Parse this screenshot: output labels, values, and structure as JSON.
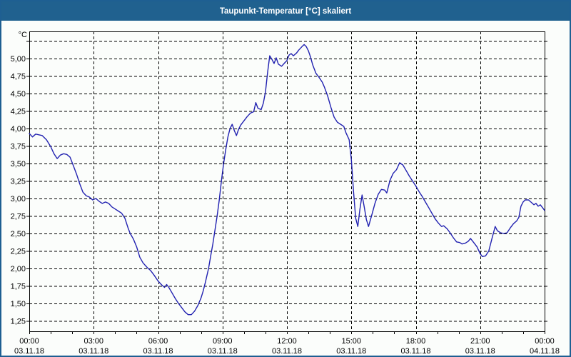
{
  "window": {
    "title": "Taupunkt-Temperatur [°C] skaliert"
  },
  "colors": {
    "titlebar_bg": "#20618f",
    "frame": "#1e5f92",
    "background": "#fbfdfb",
    "grid": "#000000",
    "axis": "#000000",
    "line": "#2121b0",
    "title_text": "#ffffff"
  },
  "chart_data": {
    "type": "line",
    "title": "Taupunkt-Temperatur [°C] skaliert",
    "ylabel": "°C",
    "xlabel": "",
    "x_unit": "hours since 00:00 03.11.18",
    "xlim": [
      0,
      24
    ],
    "ylim": [
      1.1,
      5.39
    ],
    "grid": "dashed",
    "legend": "none",
    "y_ticks": [
      {
        "value": 5.25,
        "label": ""
      },
      {
        "value": 5.0,
        "label": "5,00"
      },
      {
        "value": 4.75,
        "label": "4,75"
      },
      {
        "value": 4.5,
        "label": "4,50"
      },
      {
        "value": 4.25,
        "label": "4,25"
      },
      {
        "value": 4.0,
        "label": "4,00"
      },
      {
        "value": 3.75,
        "label": "3,75"
      },
      {
        "value": 3.5,
        "label": "3,50"
      },
      {
        "value": 3.25,
        "label": "3,25"
      },
      {
        "value": 3.0,
        "label": "3,00"
      },
      {
        "value": 2.75,
        "label": "2,75"
      },
      {
        "value": 2.5,
        "label": "2,50"
      },
      {
        "value": 2.25,
        "label": "2,25"
      },
      {
        "value": 2.0,
        "label": "2,00"
      },
      {
        "value": 1.75,
        "label": "1,75"
      },
      {
        "value": 1.5,
        "label": "1,50"
      },
      {
        "value": 1.25,
        "label": "1,25"
      }
    ],
    "x_ticks": [
      {
        "hour": 0,
        "time": "00:00",
        "date": "03.11.18"
      },
      {
        "hour": 3,
        "time": "03:00",
        "date": "03.11.18"
      },
      {
        "hour": 6,
        "time": "06:00",
        "date": "03.11.18"
      },
      {
        "hour": 9,
        "time": "09:00",
        "date": "03.11.18"
      },
      {
        "hour": 12,
        "time": "12:00",
        "date": "03.11.18"
      },
      {
        "hour": 15,
        "time": "15:00",
        "date": "03.11.18"
      },
      {
        "hour": 18,
        "time": "18:00",
        "date": "03.11.18"
      },
      {
        "hour": 21,
        "time": "21:00",
        "date": "03.11.18"
      },
      {
        "hour": 24,
        "time": "00:00",
        "date": "04.11.18"
      }
    ],
    "minor_x_tick_step_hours": 1,
    "series": [
      {
        "name": "Taupunkt-Temperatur",
        "color": "#2121b0",
        "points": [
          [
            0.0,
            3.93
          ],
          [
            0.15,
            3.88
          ],
          [
            0.3,
            3.92
          ],
          [
            0.45,
            3.91
          ],
          [
            0.6,
            3.9
          ],
          [
            0.8,
            3.84
          ],
          [
            1.0,
            3.74
          ],
          [
            1.15,
            3.64
          ],
          [
            1.3,
            3.57
          ],
          [
            1.45,
            3.62
          ],
          [
            1.6,
            3.64
          ],
          [
            1.75,
            3.63
          ],
          [
            1.9,
            3.59
          ],
          [
            2.05,
            3.47
          ],
          [
            2.2,
            3.35
          ],
          [
            2.35,
            3.21
          ],
          [
            2.5,
            3.09
          ],
          [
            2.65,
            3.04
          ],
          [
            2.8,
            3.02
          ],
          [
            2.95,
            2.98
          ],
          [
            3.1,
            3.0
          ],
          [
            3.25,
            2.96
          ],
          [
            3.4,
            2.93
          ],
          [
            3.55,
            2.95
          ],
          [
            3.7,
            2.93
          ],
          [
            3.85,
            2.88
          ],
          [
            4.0,
            2.85
          ],
          [
            4.15,
            2.82
          ],
          [
            4.3,
            2.79
          ],
          [
            4.45,
            2.72
          ],
          [
            4.6,
            2.58
          ],
          [
            4.7,
            2.5
          ],
          [
            4.85,
            2.42
          ],
          [
            5.0,
            2.31
          ],
          [
            5.15,
            2.16
          ],
          [
            5.3,
            2.08
          ],
          [
            5.5,
            2.01
          ],
          [
            5.65,
            1.97
          ],
          [
            5.8,
            1.91
          ],
          [
            6.0,
            1.82
          ],
          [
            6.15,
            1.77
          ],
          [
            6.3,
            1.73
          ],
          [
            6.4,
            1.77
          ],
          [
            6.5,
            1.73
          ],
          [
            6.65,
            1.65
          ],
          [
            6.8,
            1.57
          ],
          [
            6.95,
            1.5
          ],
          [
            7.1,
            1.44
          ],
          [
            7.25,
            1.38
          ],
          [
            7.4,
            1.34
          ],
          [
            7.55,
            1.34
          ],
          [
            7.7,
            1.39
          ],
          [
            7.85,
            1.47
          ],
          [
            8.0,
            1.58
          ],
          [
            8.1,
            1.68
          ],
          [
            8.2,
            1.8
          ],
          [
            8.35,
            2.0
          ],
          [
            8.45,
            2.18
          ],
          [
            8.55,
            2.35
          ],
          [
            8.65,
            2.55
          ],
          [
            8.75,
            2.75
          ],
          [
            8.85,
            2.98
          ],
          [
            8.95,
            3.25
          ],
          [
            9.05,
            3.5
          ],
          [
            9.15,
            3.7
          ],
          [
            9.25,
            3.88
          ],
          [
            9.35,
            4.0
          ],
          [
            9.45,
            4.06
          ],
          [
            9.55,
            3.97
          ],
          [
            9.65,
            3.9
          ],
          [
            9.75,
            3.99
          ],
          [
            9.85,
            4.05
          ],
          [
            10.0,
            4.11
          ],
          [
            10.15,
            4.17
          ],
          [
            10.3,
            4.22
          ],
          [
            10.45,
            4.24
          ],
          [
            10.55,
            4.37
          ],
          [
            10.65,
            4.29
          ],
          [
            10.8,
            4.27
          ],
          [
            10.9,
            4.36
          ],
          [
            11.0,
            4.52
          ],
          [
            11.1,
            4.8
          ],
          [
            11.2,
            5.04
          ],
          [
            11.3,
            4.99
          ],
          [
            11.4,
            4.93
          ],
          [
            11.5,
            5.01
          ],
          [
            11.6,
            4.92
          ],
          [
            11.75,
            4.89
          ],
          [
            11.9,
            4.94
          ],
          [
            12.0,
            4.97
          ],
          [
            12.1,
            5.05
          ],
          [
            12.2,
            5.07
          ],
          [
            12.3,
            5.04
          ],
          [
            12.45,
            5.08
          ],
          [
            12.55,
            5.12
          ],
          [
            12.7,
            5.17
          ],
          [
            12.8,
            5.2
          ],
          [
            12.9,
            5.17
          ],
          [
            13.0,
            5.11
          ],
          [
            13.1,
            5.02
          ],
          [
            13.2,
            4.91
          ],
          [
            13.35,
            4.79
          ],
          [
            13.5,
            4.73
          ],
          [
            13.65,
            4.66
          ],
          [
            13.75,
            4.59
          ],
          [
            13.9,
            4.46
          ],
          [
            14.05,
            4.3
          ],
          [
            14.2,
            4.16
          ],
          [
            14.35,
            4.09
          ],
          [
            14.5,
            4.06
          ],
          [
            14.65,
            4.03
          ],
          [
            14.75,
            3.94
          ],
          [
            14.9,
            3.84
          ],
          [
            15.0,
            3.55
          ],
          [
            15.1,
            3.1
          ],
          [
            15.2,
            2.72
          ],
          [
            15.3,
            2.6
          ],
          [
            15.4,
            2.85
          ],
          [
            15.5,
            3.05
          ],
          [
            15.6,
            2.88
          ],
          [
            15.7,
            2.7
          ],
          [
            15.8,
            2.6
          ],
          [
            15.95,
            2.76
          ],
          [
            16.1,
            2.93
          ],
          [
            16.25,
            3.06
          ],
          [
            16.4,
            3.13
          ],
          [
            16.55,
            3.12
          ],
          [
            16.65,
            3.08
          ],
          [
            16.8,
            3.26
          ],
          [
            16.95,
            3.36
          ],
          [
            17.1,
            3.41
          ],
          [
            17.25,
            3.51
          ],
          [
            17.4,
            3.48
          ],
          [
            17.55,
            3.4
          ],
          [
            17.7,
            3.32
          ],
          [
            17.85,
            3.25
          ],
          [
            18.0,
            3.18
          ],
          [
            18.15,
            3.1
          ],
          [
            18.3,
            3.03
          ],
          [
            18.45,
            2.95
          ],
          [
            18.6,
            2.87
          ],
          [
            18.75,
            2.79
          ],
          [
            18.9,
            2.71
          ],
          [
            19.05,
            2.65
          ],
          [
            19.2,
            2.6
          ],
          [
            19.3,
            2.61
          ],
          [
            19.45,
            2.57
          ],
          [
            19.6,
            2.51
          ],
          [
            19.75,
            2.44
          ],
          [
            19.9,
            2.38
          ],
          [
            20.05,
            2.37
          ],
          [
            20.15,
            2.35
          ],
          [
            20.3,
            2.36
          ],
          [
            20.45,
            2.39
          ],
          [
            20.55,
            2.43
          ],
          [
            20.7,
            2.37
          ],
          [
            20.85,
            2.31
          ],
          [
            21.0,
            2.21
          ],
          [
            21.1,
            2.17
          ],
          [
            21.25,
            2.18
          ],
          [
            21.4,
            2.25
          ],
          [
            21.55,
            2.43
          ],
          [
            21.7,
            2.6
          ],
          [
            21.8,
            2.54
          ],
          [
            21.95,
            2.51
          ],
          [
            22.1,
            2.5
          ],
          [
            22.25,
            2.51
          ],
          [
            22.4,
            2.58
          ],
          [
            22.55,
            2.64
          ],
          [
            22.7,
            2.68
          ],
          [
            22.8,
            2.73
          ],
          [
            22.9,
            2.89
          ],
          [
            23.0,
            2.95
          ],
          [
            23.1,
            2.98
          ],
          [
            23.25,
            2.98
          ],
          [
            23.4,
            2.94
          ],
          [
            23.5,
            2.91
          ],
          [
            23.6,
            2.93
          ],
          [
            23.7,
            2.89
          ],
          [
            23.8,
            2.91
          ],
          [
            23.9,
            2.87
          ],
          [
            24.0,
            2.83
          ]
        ]
      }
    ]
  }
}
